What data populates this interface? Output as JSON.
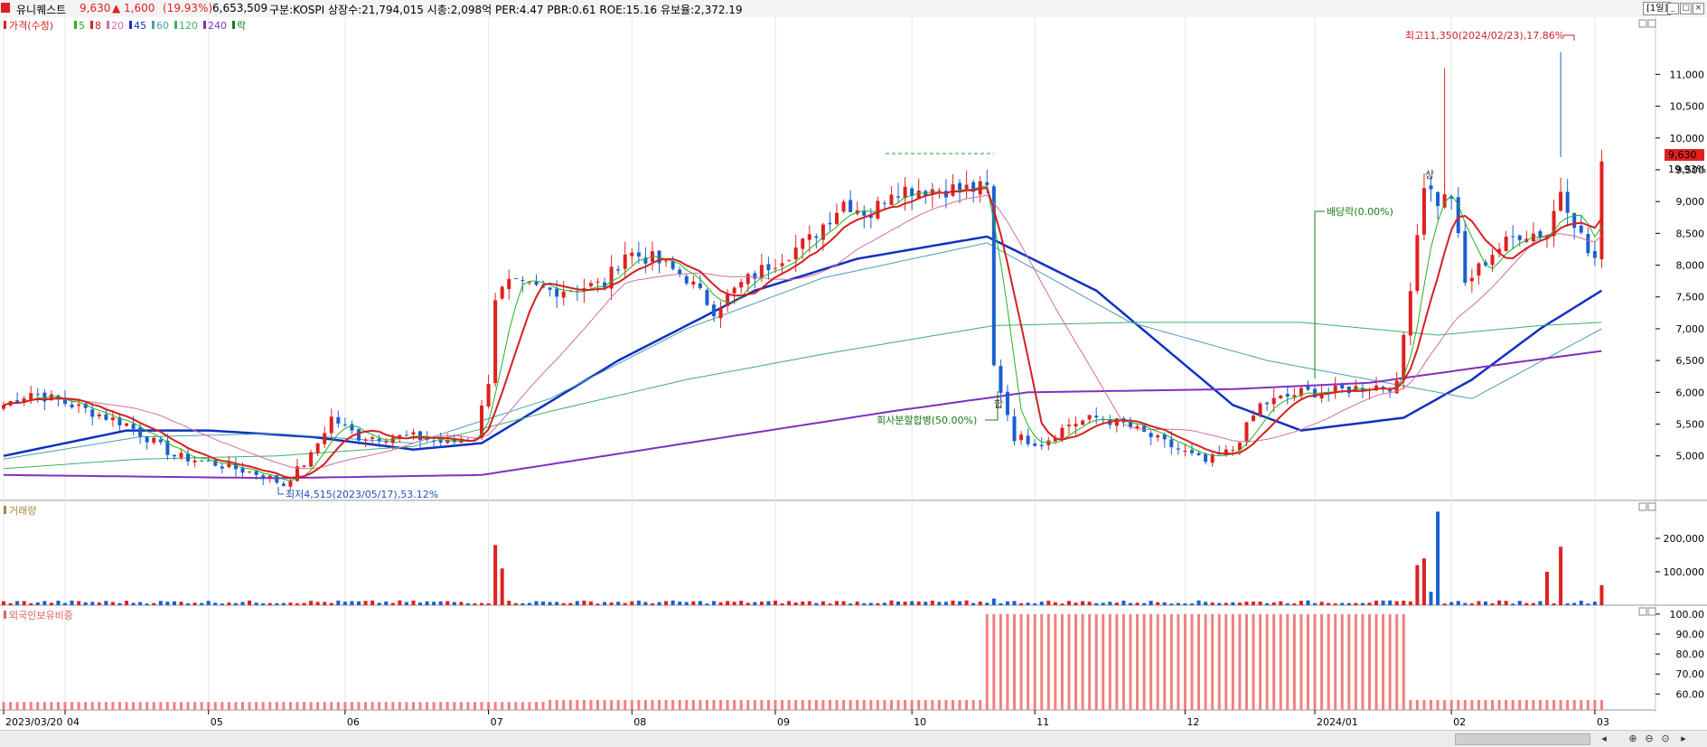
{
  "header": {
    "stock_name": "유니퀘스트",
    "price": "9,630",
    "change": "▲ 1,600",
    "change_pct": "(19.93%)",
    "volume": "6,653,509",
    "info": "구분:KOSPI 상장수:21,794,015 시총:2,098억 PER:4.47 PBR:0.61 ROE:15.16 유보율:2,372.19",
    "period": "[1일]",
    "up_color": "#e02020",
    "down_color": "#1a5fd0"
  },
  "legend": {
    "price_label": "가격(수정)",
    "ma_labels": [
      "5",
      "8",
      "20",
      "45",
      "60",
      "120",
      "240"
    ],
    "ma_colors": [
      "#21b421",
      "#d42020",
      "#d06ea0",
      "#1030c0",
      "#4aa0b0",
      "#3cb06a",
      "#8030c0"
    ],
    "event_label": "락",
    "volume_label": "거래량",
    "foreign_label": "외국인보유비중"
  },
  "annotations": {
    "high": "최고11,350(2024/02/23),17.86%",
    "low": "최저4,515(2023/05/17),53.12%",
    "split": "회사분할합병(50.00%)",
    "dividend": "배당락(0.00%)",
    "tag_split": "합",
    "tag_dividend": "배",
    "tag_high": "상",
    "current_price": "9,630",
    "current_pct": "19.93%"
  },
  "chart_data": [
    {
      "type": "candlestick",
      "title": "가격(수정)",
      "y_ticks": [
        5000,
        5500,
        6000,
        6500,
        7000,
        7500,
        8000,
        8500,
        9000,
        9500,
        10000,
        10500,
        11000
      ],
      "ylim": [
        4300,
        11900
      ],
      "x_labels": [
        "2023/03/20",
        "04",
        "05",
        "06",
        "07",
        "08",
        "09",
        "10",
        "11",
        "12",
        "2024/01",
        "02",
        "03"
      ],
      "x_label_index": [
        0,
        9,
        30,
        50,
        71,
        92,
        113,
        133,
        151,
        173,
        192,
        212,
        233
      ],
      "x_count": 236,
      "knots": [
        [
          0,
          5800
        ],
        [
          4,
          6000
        ],
        [
          10,
          5800
        ],
        [
          18,
          5500
        ],
        [
          25,
          5000
        ],
        [
          30,
          4900
        ],
        [
          38,
          4700
        ],
        [
          41,
          4550
        ],
        [
          45,
          5000
        ],
        [
          48,
          5600
        ],
        [
          52,
          5300
        ],
        [
          60,
          5300
        ],
        [
          65,
          5200
        ],
        [
          69,
          5300
        ],
        [
          71,
          6200
        ],
        [
          72,
          7500
        ],
        [
          74,
          7700
        ],
        [
          80,
          7600
        ],
        [
          88,
          7700
        ],
        [
          91,
          8200
        ],
        [
          95,
          8100
        ],
        [
          100,
          7800
        ],
        [
          104,
          7300
        ],
        [
          108,
          7700
        ],
        [
          112,
          8000
        ],
        [
          118,
          8400
        ],
        [
          123,
          9000
        ],
        [
          127,
          8800
        ],
        [
          130,
          9200
        ],
        [
          144,
          9200
        ],
        [
          145,
          6400
        ],
        [
          148,
          5300
        ],
        [
          152,
          5200
        ],
        [
          156,
          5500
        ],
        [
          160,
          5600
        ],
        [
          164,
          5500
        ],
        [
          168,
          5300
        ],
        [
          172,
          5100
        ],
        [
          176,
          4900
        ],
        [
          180,
          5100
        ],
        [
          184,
          5800
        ],
        [
          190,
          6000
        ],
        [
          194,
          6000
        ],
        [
          200,
          6100
        ],
        [
          204,
          6100
        ],
        [
          206,
          7700
        ],
        [
          208,
          9300
        ],
        [
          210,
          9000
        ],
        [
          212,
          9100
        ],
        [
          214,
          7700
        ],
        [
          218,
          8200
        ],
        [
          222,
          8500
        ],
        [
          226,
          8500
        ],
        [
          228,
          9200
        ],
        [
          230,
          8700
        ],
        [
          232,
          8200
        ],
        [
          233,
          8100
        ],
        [
          234,
          9630
        ]
      ],
      "high": {
        "value": 11350,
        "date": "2024/02/23",
        "pct": 17.86
      },
      "low": {
        "value": 4515,
        "date": "2023/05/17",
        "pct": 53.12
      },
      "events": [
        {
          "label": "회사분할합병(50.00%)",
          "index": 145
        },
        {
          "label": "배당락(0.00%)",
          "index": 191
        }
      ],
      "ma_knots": {
        "45": [
          [
            0,
            5000
          ],
          [
            18,
            5400
          ],
          [
            30,
            5400
          ],
          [
            45,
            5300
          ],
          [
            60,
            5100
          ],
          [
            70,
            5200
          ],
          [
            90,
            6500
          ],
          [
            110,
            7600
          ],
          [
            125,
            8100
          ],
          [
            144,
            8450
          ],
          [
            160,
            7600
          ],
          [
            180,
            5800
          ],
          [
            190,
            5400
          ],
          [
            205,
            5600
          ],
          [
            215,
            6200
          ],
          [
            225,
            7000
          ],
          [
            234,
            7600
          ]
        ],
        "60": [
          [
            0,
            4950
          ],
          [
            20,
            5300
          ],
          [
            40,
            5350
          ],
          [
            60,
            5200
          ],
          [
            80,
            5900
          ],
          [
            100,
            7000
          ],
          [
            120,
            7800
          ],
          [
            144,
            8350
          ],
          [
            165,
            7100
          ],
          [
            185,
            6500
          ],
          [
            200,
            6200
          ],
          [
            215,
            5900
          ],
          [
            234,
            7000
          ]
        ],
        "120": [
          [
            0,
            4800
          ],
          [
            20,
            4950
          ],
          [
            40,
            5000
          ],
          [
            60,
            5150
          ],
          [
            80,
            5700
          ],
          [
            100,
            6200
          ],
          [
            120,
            6600
          ],
          [
            145,
            7050
          ],
          [
            165,
            7100
          ],
          [
            190,
            7100
          ],
          [
            210,
            6900
          ],
          [
            225,
            7050
          ],
          [
            234,
            7100
          ]
        ],
        "240": [
          [
            0,
            4700
          ],
          [
            40,
            4650
          ],
          [
            70,
            4700
          ],
          [
            100,
            5200
          ],
          [
            130,
            5700
          ],
          [
            150,
            6000
          ],
          [
            180,
            6050
          ],
          [
            200,
            6150
          ],
          [
            220,
            6450
          ],
          [
            234,
            6650
          ]
        ]
      }
    },
    {
      "type": "bar",
      "title": "거래량",
      "y_ticks": [
        100000,
        200000
      ],
      "ylim": [
        0,
        300000
      ],
      "spikes": [
        [
          72,
          180000
        ],
        [
          73,
          110000
        ],
        [
          145,
          20000
        ],
        [
          207,
          120000
        ],
        [
          208,
          140000
        ],
        [
          209,
          40000
        ],
        [
          210,
          280000
        ],
        [
          226,
          100000
        ],
        [
          228,
          175000
        ],
        [
          234,
          60000
        ]
      ],
      "base": 8000
    },
    {
      "type": "bar",
      "title": "외국인보유비중",
      "y_ticks": [
        60.0,
        70.0,
        80.0,
        90.0,
        100.0
      ],
      "ylim": [
        52,
        104
      ],
      "segments": [
        [
          0,
          80,
          56
        ],
        [
          80,
          144,
          57
        ],
        [
          144,
          206,
          100
        ],
        [
          206,
          235,
          57
        ]
      ]
    }
  ]
}
